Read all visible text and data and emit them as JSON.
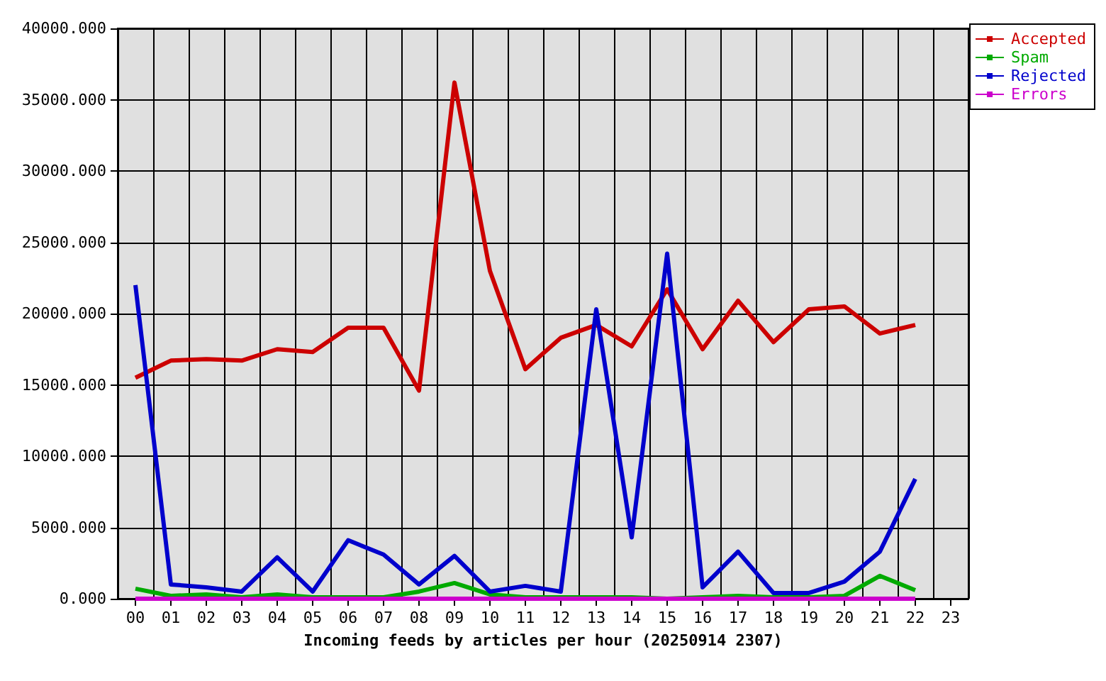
{
  "chart_data": {
    "type": "line",
    "xlabel": "Incoming feeds by articles per hour (20250914 2307)",
    "categories": [
      "00",
      "01",
      "02",
      "03",
      "04",
      "05",
      "06",
      "07",
      "08",
      "09",
      "10",
      "11",
      "12",
      "13",
      "14",
      "15",
      "16",
      "17",
      "18",
      "19",
      "20",
      "21",
      "22",
      "23"
    ],
    "series": [
      {
        "name": "Accepted",
        "color": "#cc0000",
        "values": [
          15500,
          16700,
          16800,
          16700,
          17500,
          17300,
          19000,
          19000,
          14600,
          36200,
          23000,
          16100,
          18300,
          19200,
          17700,
          21700,
          17500,
          20900,
          18000,
          20300,
          20500,
          18600,
          19200,
          null
        ]
      },
      {
        "name": "Spam",
        "color": "#00aa00",
        "values": [
          700,
          200,
          300,
          100,
          300,
          100,
          100,
          100,
          500,
          1100,
          300,
          100,
          100,
          100,
          100,
          0,
          100,
          200,
          100,
          100,
          200,
          1600,
          600,
          null
        ]
      },
      {
        "name": "Rejected",
        "color": "#0000cc",
        "values": [
          22000,
          1000,
          800,
          500,
          2900,
          500,
          4100,
          3100,
          1000,
          3000,
          500,
          900,
          500,
          20300,
          4300,
          24200,
          800,
          3300,
          400,
          400,
          1200,
          3300,
          8400,
          null
        ]
      },
      {
        "name": "Errors",
        "color": "#cc00cc",
        "values": [
          0,
          0,
          0,
          0,
          0,
          0,
          0,
          0,
          0,
          0,
          0,
          0,
          0,
          0,
          0,
          0,
          0,
          0,
          0,
          0,
          0,
          0,
          0,
          null
        ]
      }
    ],
    "ylim": [
      0,
      40000
    ],
    "yticks": [
      {
        "value": 0,
        "label": "0.000"
      },
      {
        "value": 5000,
        "label": "5000.000"
      },
      {
        "value": 10000,
        "label": "10000.000"
      },
      {
        "value": 15000,
        "label": "15000.000"
      },
      {
        "value": 20000,
        "label": "20000.000"
      },
      {
        "value": 25000,
        "label": "25000.000"
      },
      {
        "value": 30000,
        "label": "30000.000"
      },
      {
        "value": 35000,
        "label": "35000.000"
      },
      {
        "value": 40000,
        "label": "40000.000"
      }
    ],
    "grid": true,
    "legend": "top right"
  }
}
